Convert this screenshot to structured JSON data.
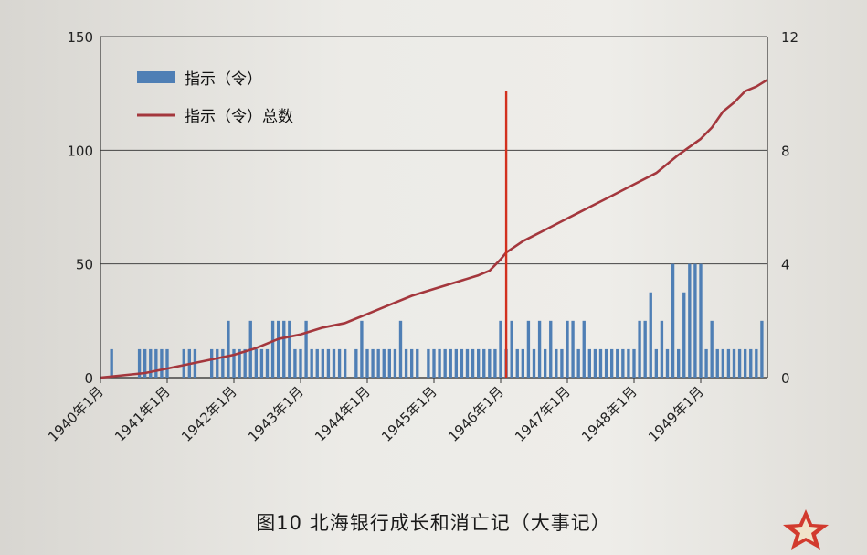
{
  "caption": "图10 北海银行成长和消亡记（大事记）",
  "colors": {
    "bar": "#4f7fb5",
    "line": "#a4373d",
    "marker": "#d2301e",
    "text": "#222222"
  },
  "chart_data": {
    "type": "bar+line",
    "legend": [
      "指示（令）",
      "指示（令）总数"
    ],
    "legend_position": "top-left",
    "left_axis": {
      "range": [
        0,
        150
      ],
      "ticks": [
        "0",
        "50",
        "100",
        "150"
      ]
    },
    "right_axis": {
      "range": [
        0,
        12
      ],
      "ticks": [
        "0",
        "4",
        "8",
        "12"
      ]
    },
    "x_ticks": [
      "1940年1月",
      "1941年1月",
      "1942年1月",
      "1943年1月",
      "1944年1月",
      "1945年1月",
      "1946年1月",
      "1947年1月",
      "1948年1月",
      "1949年1月"
    ],
    "x_range_months": 120,
    "grid": "horizontal",
    "marker_month": 73,
    "bars": [
      [
        2,
        1
      ],
      [
        7,
        1
      ],
      [
        8,
        1
      ],
      [
        9,
        1
      ],
      [
        10,
        1
      ],
      [
        11,
        1
      ],
      [
        12,
        1
      ],
      [
        15,
        1
      ],
      [
        16,
        1
      ],
      [
        17,
        1
      ],
      [
        20,
        1
      ],
      [
        21,
        1
      ],
      [
        22,
        1
      ],
      [
        23,
        2
      ],
      [
        24,
        1
      ],
      [
        25,
        1
      ],
      [
        26,
        1
      ],
      [
        27,
        2
      ],
      [
        28,
        1
      ],
      [
        29,
        1
      ],
      [
        30,
        1
      ],
      [
        31,
        2
      ],
      [
        32,
        2
      ],
      [
        33,
        2
      ],
      [
        34,
        2
      ],
      [
        35,
        1
      ],
      [
        36,
        1
      ],
      [
        37,
        2
      ],
      [
        38,
        1
      ],
      [
        39,
        1
      ],
      [
        40,
        1
      ],
      [
        41,
        1
      ],
      [
        42,
        1
      ],
      [
        43,
        1
      ],
      [
        44,
        1
      ],
      [
        46,
        1
      ],
      [
        47,
        2
      ],
      [
        48,
        1
      ],
      [
        49,
        1
      ],
      [
        50,
        1
      ],
      [
        51,
        1
      ],
      [
        52,
        1
      ],
      [
        53,
        1
      ],
      [
        54,
        2
      ],
      [
        55,
        1
      ],
      [
        56,
        1
      ],
      [
        57,
        1
      ],
      [
        59,
        1
      ],
      [
        60,
        1
      ],
      [
        61,
        1
      ],
      [
        62,
        1
      ],
      [
        63,
        1
      ],
      [
        64,
        1
      ],
      [
        65,
        1
      ],
      [
        66,
        1
      ],
      [
        67,
        1
      ],
      [
        68,
        1
      ],
      [
        69,
        1
      ],
      [
        70,
        1
      ],
      [
        71,
        1
      ],
      [
        72,
        2
      ],
      [
        73,
        1
      ],
      [
        74,
        2
      ],
      [
        75,
        1
      ],
      [
        76,
        1
      ],
      [
        77,
        2
      ],
      [
        78,
        1
      ],
      [
        79,
        2
      ],
      [
        80,
        1
      ],
      [
        81,
        2
      ],
      [
        82,
        1
      ],
      [
        83,
        1
      ],
      [
        84,
        2
      ],
      [
        85,
        2
      ],
      [
        86,
        1
      ],
      [
        87,
        2
      ],
      [
        88,
        1
      ],
      [
        89,
        1
      ],
      [
        90,
        1
      ],
      [
        91,
        1
      ],
      [
        92,
        1
      ],
      [
        93,
        1
      ],
      [
        94,
        1
      ],
      [
        95,
        1
      ],
      [
        96,
        1
      ],
      [
        97,
        2
      ],
      [
        98,
        2
      ],
      [
        99,
        3
      ],
      [
        100,
        1
      ],
      [
        101,
        2
      ],
      [
        102,
        1
      ],
      [
        103,
        4
      ],
      [
        104,
        1
      ],
      [
        105,
        3
      ],
      [
        106,
        4
      ],
      [
        107,
        4
      ],
      [
        108,
        4
      ],
      [
        109,
        1
      ],
      [
        110,
        2
      ],
      [
        111,
        1
      ],
      [
        112,
        1
      ],
      [
        113,
        1
      ],
      [
        114,
        1
      ],
      [
        115,
        1
      ],
      [
        116,
        1
      ],
      [
        117,
        1
      ],
      [
        118,
        1
      ],
      [
        119,
        2
      ]
    ],
    "cumulative": [
      [
        0,
        0
      ],
      [
        4,
        1
      ],
      [
        8,
        2
      ],
      [
        12,
        4
      ],
      [
        16,
        6
      ],
      [
        20,
        8
      ],
      [
        24,
        10
      ],
      [
        28,
        13
      ],
      [
        32,
        17
      ],
      [
        36,
        19
      ],
      [
        40,
        22
      ],
      [
        44,
        24
      ],
      [
        48,
        28
      ],
      [
        52,
        32
      ],
      [
        56,
        36
      ],
      [
        60,
        39
      ],
      [
        64,
        42
      ],
      [
        68,
        45
      ],
      [
        70,
        47
      ],
      [
        72,
        52
      ],
      [
        73,
        55
      ],
      [
        76,
        60
      ],
      [
        80,
        65
      ],
      [
        84,
        70
      ],
      [
        88,
        75
      ],
      [
        92,
        80
      ],
      [
        96,
        85
      ],
      [
        100,
        90
      ],
      [
        104,
        98
      ],
      [
        108,
        105
      ],
      [
        110,
        110
      ],
      [
        112,
        117
      ],
      [
        114,
        121
      ],
      [
        116,
        126
      ],
      [
        118,
        128
      ],
      [
        120,
        131
      ]
    ]
  }
}
